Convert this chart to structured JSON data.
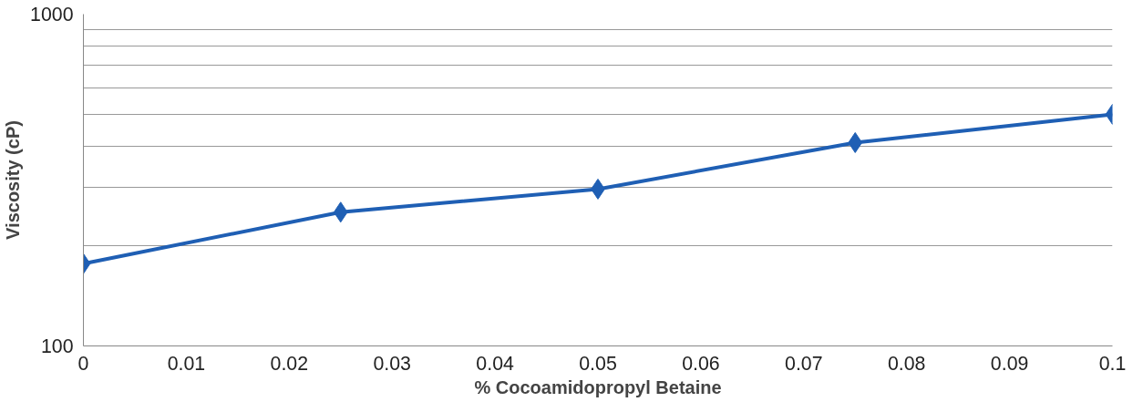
{
  "chart_data": {
    "type": "line",
    "xlabel": "% Cocoamidopropyl Betaine",
    "ylabel": "Viscosity (cP)",
    "x": [
      0,
      0.025,
      0.05,
      0.075,
      0.1
    ],
    "series": [
      {
        "color": "#1f5fb4",
        "values": [
          177,
          253,
          297,
          410,
          499
        ]
      }
    ],
    "log": "y",
    "xlim": [
      0,
      0.1
    ],
    "ylim": [
      100,
      1000
    ],
    "xticks": [
      0,
      0.01,
      0.02,
      0.03,
      0.04,
      0.05,
      0.06,
      0.07,
      0.08,
      0.09,
      0.1
    ],
    "yticks": [
      100,
      {
        "value": 200,
        "label": null
      },
      {
        "value": 300,
        "label": null
      },
      {
        "value": 400,
        "label": null
      },
      {
        "value": 500,
        "label": null
      },
      {
        "value": 600,
        "label": null
      },
      {
        "value": 700,
        "label": null
      },
      {
        "value": 800,
        "label": null
      },
      {
        "value": 900,
        "label": null
      },
      1000
    ],
    "grid": "y",
    "marker": "diamond",
    "line_style": "solid"
  }
}
